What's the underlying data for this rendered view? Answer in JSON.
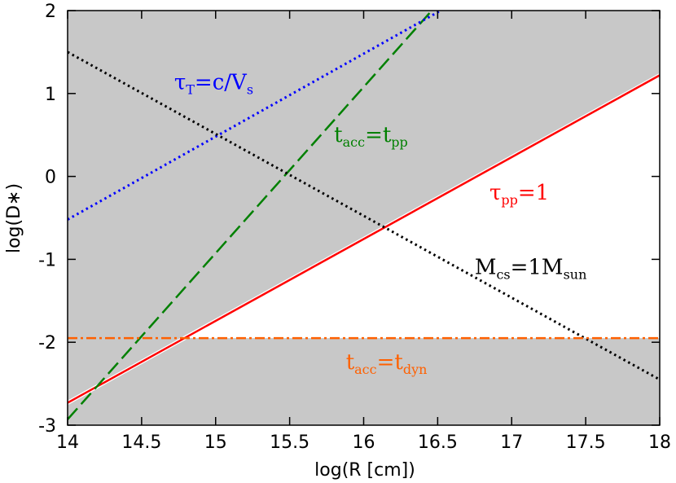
{
  "chart_data": {
    "type": "line",
    "xlabel": "log(R [cm])",
    "ylabel": "log(D∗)",
    "xlim": [
      14,
      18
    ],
    "ylim": [
      -3,
      2
    ],
    "xticks": [
      "14",
      "14.5",
      "15",
      "15.5",
      "16",
      "16.5",
      "17",
      "17.5",
      "18"
    ],
    "yticks": [
      "-3",
      "-2",
      "-1",
      "0",
      "1",
      "2"
    ],
    "grid": false,
    "legend": "none",
    "shaded_region": {
      "color": "#c8c8c8",
      "description_points": [
        [
          14,
          -2.73
        ],
        [
          14.78,
          -1.93
        ],
        [
          18,
          1.22
        ]
      ]
    },
    "series": [
      {
        "color": "#ff0000",
        "style": "solid",
        "x": [
          14,
          18
        ],
        "y": [
          -2.73,
          1.22
        ]
      },
      {
        "color": "#008000",
        "style": "dashed",
        "x": [
          14,
          16.46
        ],
        "y": [
          -2.93,
          2.0
        ]
      },
      {
        "color": "#0000ff",
        "style": "dotted",
        "x": [
          14,
          16.52
        ],
        "y": [
          -0.52,
          2.0
        ]
      },
      {
        "color": "#000000",
        "style": "dotted",
        "x": [
          14,
          18
        ],
        "y": [
          1.5,
          -2.45
        ]
      },
      {
        "color": "#ff6000",
        "style": "dash-dot",
        "x": [
          14,
          18
        ],
        "y": [
          -1.95,
          -1.95
        ]
      }
    ],
    "annotations": [
      {
        "main": "τ",
        "sub": "T",
        "rest": "=c/V",
        "sub2": "s",
        "color": "#0000ff",
        "x": 14.72,
        "y": 1.05
      },
      {
        "main": "t",
        "sub": "acc",
        "rest": "=t",
        "sub2": "pp",
        "color": "#008000",
        "x": 15.8,
        "y": 0.42
      },
      {
        "main": "τ",
        "sub": "pp",
        "rest": "=1",
        "sub2": "",
        "color": "#ff0000",
        "x": 16.85,
        "y": -0.28
      },
      {
        "main": "M",
        "sub": "cs",
        "rest": "=1M",
        "sub2": "sun",
        "color": "#000000",
        "x": 16.75,
        "y": -1.18
      },
      {
        "main": "t",
        "sub": "acc",
        "rest": "=t",
        "sub2": "dyn",
        "color": "#ff6000",
        "x": 15.88,
        "y": -2.32
      }
    ]
  }
}
